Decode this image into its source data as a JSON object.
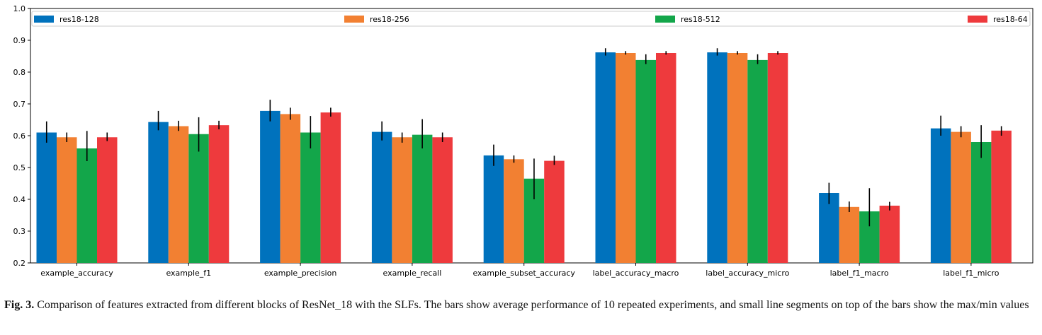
{
  "chart_data": {
    "type": "bar",
    "title": "",
    "xlabel": "",
    "ylabel": "",
    "ylim": [
      0.2,
      1.0
    ],
    "yticks": [
      "0.2",
      "0.3",
      "0.4",
      "0.5",
      "0.6",
      "0.7",
      "0.8",
      "0.9",
      "1.0"
    ],
    "ytick_values": [
      0.2,
      0.3,
      0.4,
      0.5,
      0.6,
      0.7,
      0.8,
      0.9,
      1.0
    ],
    "legend_position": "top",
    "categories": [
      "example_accuracy",
      "example_f1",
      "example_precision",
      "example_recall",
      "example_subset_accuracy",
      "label_accuracy_macro",
      "label_accuracy_micro",
      "label_f1_macro",
      "label_f1_micro"
    ],
    "series": [
      {
        "name": "res18-128",
        "color": "#0072bd",
        "values": [
          0.61,
          0.643,
          0.678,
          0.612,
          0.538,
          0.862,
          0.862,
          0.42,
          0.623
        ],
        "min": [
          0.578,
          0.617,
          0.645,
          0.585,
          0.505,
          0.852,
          0.852,
          0.385,
          0.6
        ],
        "max": [
          0.645,
          0.678,
          0.713,
          0.645,
          0.572,
          0.875,
          0.875,
          0.452,
          0.663
        ]
      },
      {
        "name": "res18-256",
        "color": "#f28032",
        "values": [
          0.595,
          0.63,
          0.668,
          0.595,
          0.526,
          0.86,
          0.86,
          0.376,
          0.612
        ],
        "min": [
          0.58,
          0.615,
          0.65,
          0.578,
          0.515,
          0.855,
          0.855,
          0.36,
          0.595
        ],
        "max": [
          0.61,
          0.647,
          0.688,
          0.61,
          0.538,
          0.866,
          0.866,
          0.393,
          0.63
        ]
      },
      {
        "name": "res18-512",
        "color": "#13a64a",
        "values": [
          0.56,
          0.605,
          0.61,
          0.603,
          0.465,
          0.838,
          0.838,
          0.362,
          0.58
        ],
        "min": [
          0.52,
          0.55,
          0.56,
          0.56,
          0.4,
          0.825,
          0.825,
          0.315,
          0.53
        ],
        "max": [
          0.615,
          0.658,
          0.662,
          0.652,
          0.528,
          0.856,
          0.856,
          0.435,
          0.633
        ]
      },
      {
        "name": "res18-64",
        "color": "#ee3a3d",
        "values": [
          0.595,
          0.633,
          0.673,
          0.595,
          0.521,
          0.86,
          0.86,
          0.38,
          0.616
        ],
        "min": [
          0.583,
          0.62,
          0.66,
          0.58,
          0.508,
          0.855,
          0.855,
          0.365,
          0.6
        ],
        "max": [
          0.61,
          0.647,
          0.688,
          0.61,
          0.537,
          0.866,
          0.866,
          0.392,
          0.63
        ]
      }
    ]
  },
  "caption": {
    "label": "Fig. 3.",
    "text": "Comparison of features extracted from different blocks of ResNet_18 with the SLFs. The bars show average performance of 10 repeated experiments, and small line segments on top of the bars show the max/min values"
  }
}
